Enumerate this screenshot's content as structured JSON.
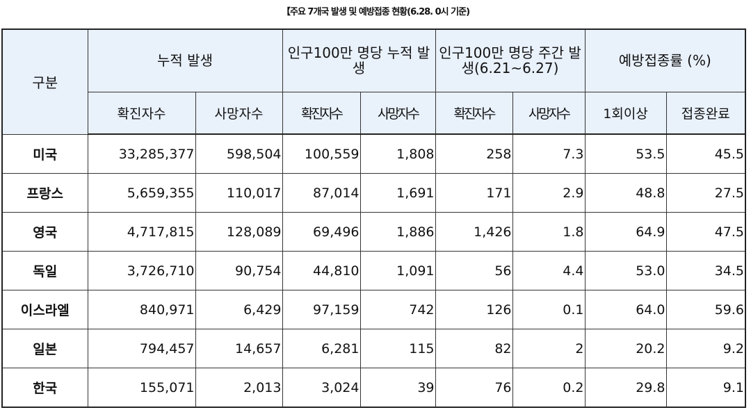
{
  "title": "【주요 7개국 발생 및 예방접종 현황(6.28. 0시 기준)",
  "header": {
    "gubun": "구분",
    "groups": [
      "누적 발생",
      "인구100만 명당 누적 발생",
      "인구100만 명당 주간 발생(6.21~6.27)",
      "예방접종률 (%)"
    ],
    "subs": [
      "확진자수",
      "사망자수",
      "확진자수",
      "사망자수",
      "확진자수",
      "사망자수",
      "1회이상",
      "접종완료"
    ]
  },
  "rows": [
    {
      "country": "미국",
      "values": [
        "33,285,377",
        "598,504",
        "100,559",
        "1,808",
        "258",
        "7.3",
        "53.5",
        "45.5"
      ]
    },
    {
      "country": "프랑스",
      "values": [
        "5,659,355",
        "110,017",
        "87,014",
        "1,691",
        "171",
        "2.9",
        "48.8",
        "27.5"
      ]
    },
    {
      "country": "영국",
      "values": [
        "4,717,815",
        "128,089",
        "69,496",
        "1,886",
        "1,426",
        "1.8",
        "64.9",
        "47.5"
      ]
    },
    {
      "country": "독일",
      "values": [
        "3,726,710",
        "90,754",
        "44,810",
        "1,091",
        "56",
        "4.4",
        "53.0",
        "34.5"
      ]
    },
    {
      "country": "이스라엘",
      "values": [
        "840,971",
        "6,429",
        "97,159",
        "742",
        "126",
        "0.1",
        "64.0",
        "59.6"
      ]
    },
    {
      "country": "일본",
      "values": [
        "794,457",
        "14,657",
        "6,281",
        "115",
        "82",
        "2",
        "20.2",
        "9.2"
      ]
    },
    {
      "country": "한국",
      "values": [
        "155,071",
        "2,013",
        "3,024",
        "39",
        "76",
        "0.2",
        "29.8",
        "9.1"
      ]
    }
  ]
}
